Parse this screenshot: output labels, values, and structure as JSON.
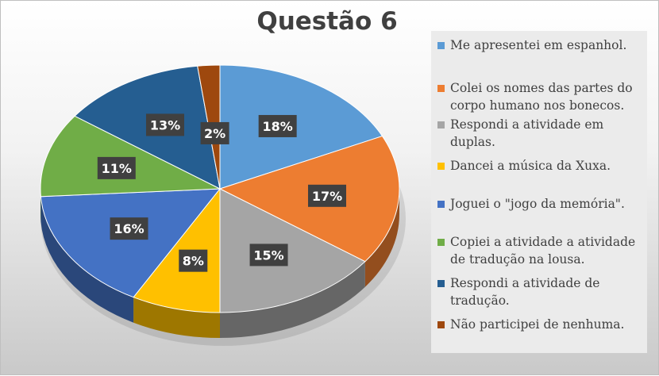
{
  "chart_data": {
    "type": "pie",
    "title": "Questão 6",
    "legend_position": "right",
    "slices": [
      {
        "label": "Me apresentei em espanhol.",
        "value": 18,
        "display": "18%",
        "color": "#5B9BD5"
      },
      {
        "label": "Colei os nomes das partes do corpo humano nos bonecos.",
        "value": 17,
        "display": "17%",
        "color": "#ED7D31"
      },
      {
        "label": "Respondi a atividade em duplas.",
        "value": 15,
        "display": "15%",
        "color": "#A5A5A5"
      },
      {
        "label": "Dancei a música da Xuxa.",
        "value": 8,
        "display": "8%",
        "color": "#FFC000"
      },
      {
        "label": "Joguei o \"jogo da memória\".",
        "value": 16,
        "display": "16%",
        "color": "#4472C4"
      },
      {
        "label": "Copiei a atividade a atividade de tradução na lousa.",
        "value": 11,
        "display": "11%",
        "color": "#70AD47"
      },
      {
        "label": "Respondi a atividade de tradução.",
        "value": 13,
        "display": "13%",
        "color": "#255E91"
      },
      {
        "label": "Não participei de nenhuma.",
        "value": 2,
        "display": "2%",
        "color": "#9E480E"
      }
    ]
  }
}
